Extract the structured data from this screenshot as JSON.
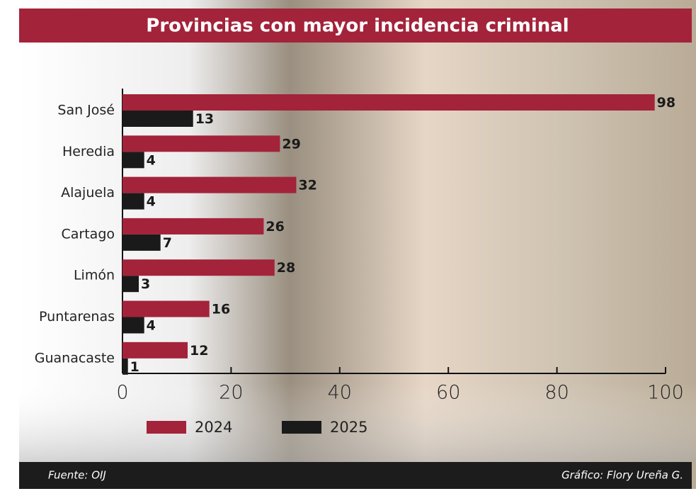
{
  "chart_data": {
    "type": "bar",
    "orientation": "horizontal",
    "title": "Provincias con mayor incidencia criminal",
    "categories": [
      "San José",
      "Heredia",
      "Alajuela",
      "Cartago",
      "Limón",
      "Puntarenas",
      "Guanacaste"
    ],
    "series": [
      {
        "name": "2024",
        "color": "#a3233a",
        "values": [
          98,
          29,
          32,
          26,
          28,
          16,
          12
        ]
      },
      {
        "name": "2025",
        "color": "#1a1a1a",
        "values": [
          13,
          4,
          4,
          7,
          3,
          4,
          1
        ]
      }
    ],
    "xlim": [
      0,
      100
    ],
    "xticks": [
      0,
      20,
      40,
      60,
      80,
      100
    ],
    "source": "Fuente: OIJ",
    "credit": "Gráfico: Flory Ureña G."
  }
}
